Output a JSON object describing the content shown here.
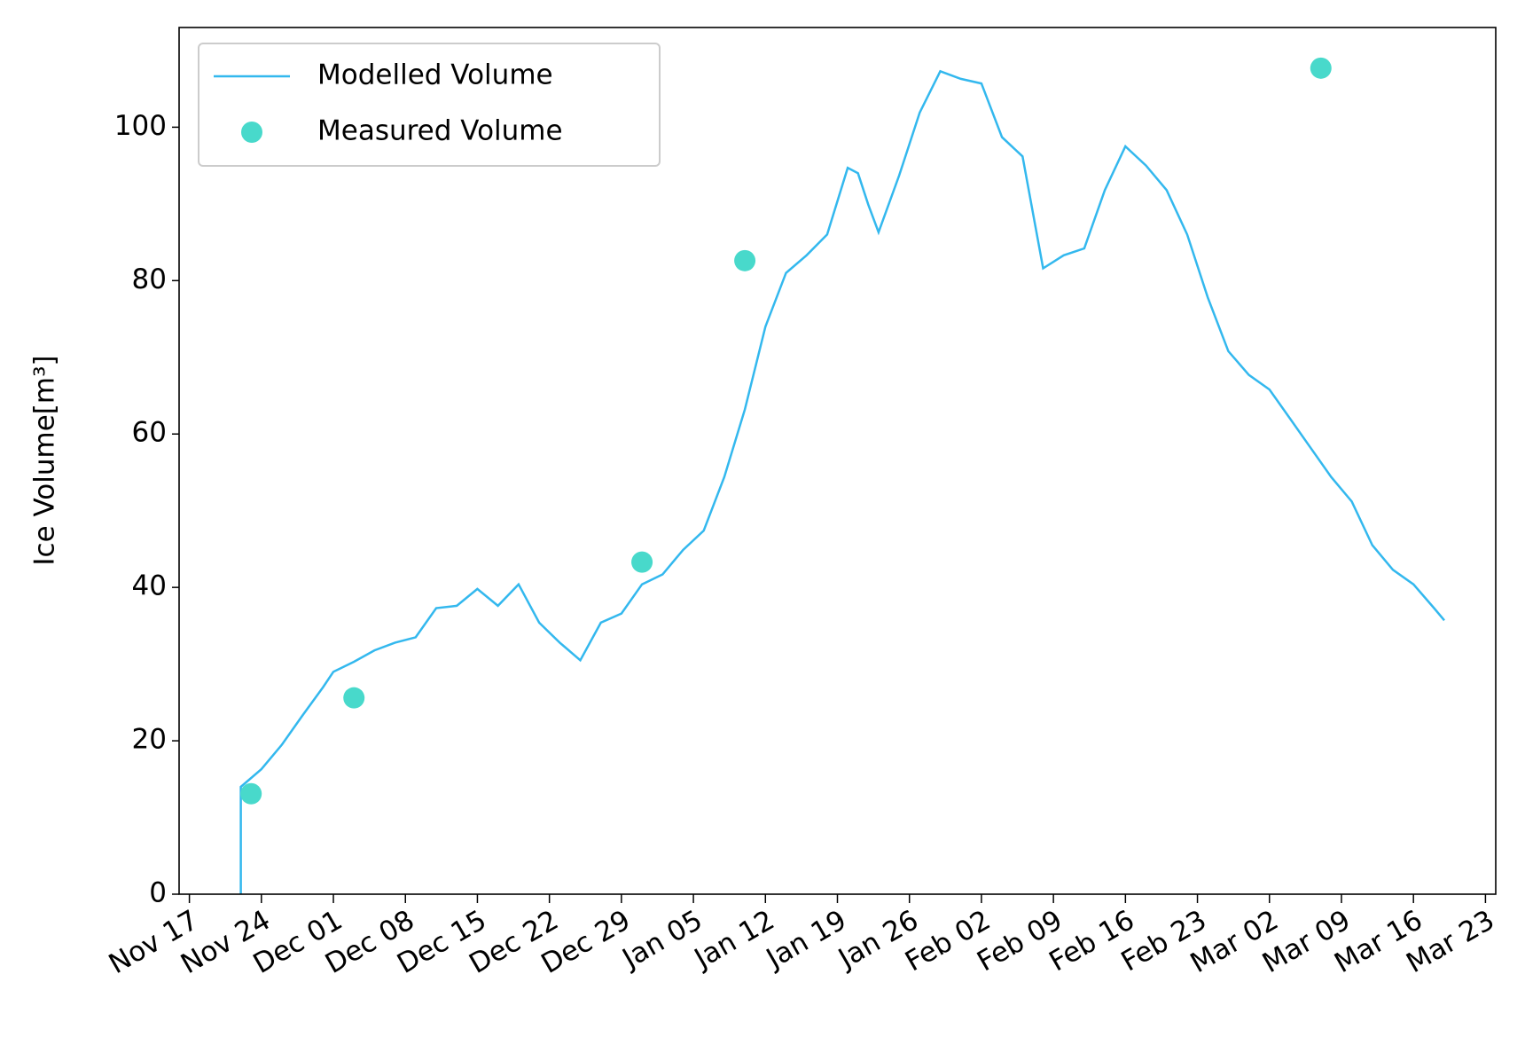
{
  "chart_data": {
    "type": "line",
    "y_label": "Ice Volume[m³]",
    "x": [
      "Nov 22",
      "Nov 22",
      "Nov 24",
      "Nov 26",
      "Nov 28",
      "Nov 30",
      "Dec 01",
      "Dec 03",
      "Dec 05",
      "Dec 07",
      "Dec 09",
      "Dec 11",
      "Dec 13",
      "Dec 15",
      "Dec 17",
      "Dec 19",
      "Dec 21",
      "Dec 23",
      "Dec 25",
      "Dec 27",
      "Dec 29",
      "Dec 31",
      "Jan 02",
      "Jan 04",
      "Jan 06",
      "Jan 08",
      "Jan 10",
      "Jan 12",
      "Jan 14",
      "Jan 16",
      "Jan 18",
      "Jan 20",
      "Jan 21",
      "Jan 22",
      "Jan 23",
      "Jan 25",
      "Jan 27",
      "Jan 29",
      "Jan 31",
      "Feb 02",
      "Feb 04",
      "Feb 06",
      "Feb 08",
      "Feb 10",
      "Feb 12",
      "Feb 14",
      "Feb 16",
      "Feb 18",
      "Feb 20",
      "Feb 22",
      "Feb 24",
      "Feb 26",
      "Feb 28",
      "Mar 02",
      "Mar 04",
      "Mar 06",
      "Mar 08",
      "Mar 10",
      "Mar 12",
      "Mar 14",
      "Mar 16",
      "Mar 18",
      "Mar 19"
    ],
    "series": [
      {
        "name": "Modelled Volume",
        "kind": "line",
        "color": "#33b8ee",
        "values": [
          0,
          14,
          16.3,
          19.5,
          23.3,
          27,
          29,
          30.3,
          31.8,
          32.8,
          33.5,
          37.3,
          37.6,
          39.8,
          37.6,
          40.4,
          35.4,
          32.8,
          30.5,
          35.4,
          36.6,
          40.4,
          41.7,
          44.9,
          47.4,
          54.4,
          63.2,
          74,
          81,
          83.3,
          86,
          94.7,
          94,
          89.9,
          86.3,
          93.7,
          101.9,
          107.3,
          106.3,
          105.7,
          98.7,
          96.2,
          81.6,
          83.3,
          84.2,
          91.8,
          97.5,
          95,
          91.8,
          86,
          77.8,
          70.8,
          67.7,
          65.8,
          62,
          58.2,
          54.4,
          51.2,
          45.5,
          42.3,
          40.4,
          37.3,
          35.7
        ]
      },
      {
        "name": "Measured Volume",
        "kind": "scatter",
        "color": "#48d9cb",
        "x": [
          "Nov 23",
          "Dec 03",
          "Dec 31",
          "Jan 10",
          "Mar 07"
        ],
        "values": [
          13.1,
          25.6,
          43.3,
          82.6,
          107.7
        ]
      }
    ],
    "xlim": [
      "Nov 16",
      "Mar 24"
    ],
    "xticks": [
      "Nov 17",
      "Nov 24",
      "Dec 01",
      "Dec 08",
      "Dec 15",
      "Dec 22",
      "Dec 29",
      "Jan 05",
      "Jan 12",
      "Jan 19",
      "Jan 26",
      "Feb 02",
      "Feb 09",
      "Feb 16",
      "Feb 23",
      "Mar 02",
      "Mar 09",
      "Mar 16",
      "Mar 23"
    ],
    "ylim": [
      0,
      113
    ],
    "yticks": [
      0,
      20,
      40,
      60,
      80,
      100
    ],
    "legend": "upper left"
  }
}
